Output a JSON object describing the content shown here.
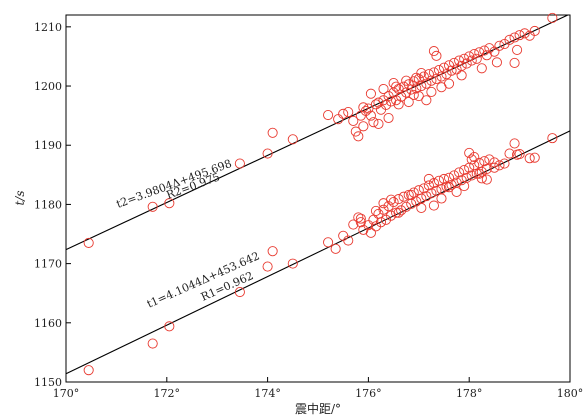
{
  "chart_data": {
    "type": "scatter",
    "xlabel": "震中距/°",
    "ylabel": "t/s",
    "xlim": [
      170,
      180
    ],
    "ylim": [
      1150,
      1212
    ],
    "xticks": [
      170,
      172,
      174,
      176,
      178,
      180
    ],
    "xtick_labels": [
      "170°",
      "172°",
      "174°",
      "176°",
      "178°",
      "180°"
    ],
    "yticks": [
      1150,
      1160,
      1170,
      1180,
      1190,
      1200,
      1210
    ],
    "ytick_labels": [
      "1150",
      "1160",
      "1170",
      "1180",
      "1190",
      "1200",
      "1210"
    ],
    "grid": false,
    "marker_color": "#e8392f",
    "line_color": "#000000",
    "series": [
      {
        "fit": {
          "slope": 3.9804,
          "intercept": 495.698
        },
        "annotation": {
          "equation": "t2=3.9804Δ+495.698",
          "r_label": "R2=0.975"
        },
        "x": [
          170.45,
          171.72,
          172.05,
          173.45,
          174.0,
          174.1,
          174.5,
          175.2,
          175.4,
          175.5,
          175.6,
          175.7,
          175.75,
          175.8,
          175.9,
          175.95,
          176.0,
          176.05,
          176.1,
          176.15,
          176.2,
          176.25,
          176.3,
          176.35,
          176.4,
          176.45,
          176.5,
          176.55,
          176.6,
          176.65,
          176.7,
          176.75,
          176.8,
          176.85,
          176.9,
          176.95,
          177.0,
          177.05,
          177.1,
          177.15,
          177.2,
          177.25,
          177.3,
          177.35,
          177.4,
          177.45,
          177.5,
          177.55,
          177.6,
          177.65,
          177.7,
          177.75,
          177.8,
          177.85,
          177.9,
          177.95,
          178.0,
          178.05,
          178.1,
          178.15,
          178.2,
          178.3,
          178.35,
          178.4,
          178.5,
          178.6,
          178.7,
          178.8,
          178.9,
          179.0,
          179.1,
          179.2,
          179.3,
          179.65,
          177.3,
          177.35,
          175.9,
          175.85,
          176.4,
          176.2,
          177.15,
          177.0,
          176.6,
          176.8,
          177.45,
          177.6,
          178.9,
          176.05,
          176.3,
          176.55,
          176.9,
          177.25,
          177.85,
          178.25,
          178.55,
          178.95,
          176.5,
          176.75,
          176.95,
          177.05
        ],
        "y": [
          1173.5,
          1179.6,
          1180.2,
          1186.9,
          1188.6,
          1192.1,
          1191.0,
          1195.1,
          1194.4,
          1195.3,
          1195.6,
          1194.1,
          1192.3,
          1191.5,
          1193.2,
          1195.8,
          1196.2,
          1195.0,
          1193.9,
          1196.9,
          1197.2,
          1196.0,
          1197.6,
          1196.8,
          1198.3,
          1197.4,
          1198.9,
          1197.6,
          1199.5,
          1198.2,
          1199.9,
          1198.9,
          1200.3,
          1199.4,
          1200.8,
          1199.6,
          1201.2,
          1200.0,
          1201.6,
          1200.4,
          1202.0,
          1200.9,
          1202.3,
          1201.2,
          1202.7,
          1201.6,
          1203.1,
          1202.0,
          1203.5,
          1202.6,
          1203.9,
          1202.8,
          1204.3,
          1203.4,
          1204.6,
          1203.8,
          1205.0,
          1204.3,
          1205.4,
          1204.6,
          1205.7,
          1206.0,
          1205.2,
          1206.4,
          1205.8,
          1206.8,
          1207.1,
          1207.8,
          1208.2,
          1208.6,
          1208.9,
          1208.5,
          1209.3,
          1211.5,
          1205.9,
          1205.1,
          1196.4,
          1195.0,
          1194.6,
          1193.6,
          1197.6,
          1198.3,
          1196.9,
          1197.3,
          1199.8,
          1200.4,
          1203.9,
          1198.7,
          1199.5,
          1199.9,
          1198.5,
          1199.0,
          1201.8,
          1203.0,
          1204.0,
          1206.1,
          1200.5,
          1200.9,
          1201.4,
          1202.2
        ]
      },
      {
        "fit": {
          "slope": 4.1044,
          "intercept": 453.642
        },
        "annotation": {
          "equation": "t1=4.1044Δ+453.642",
          "r_label": "R1=0.962"
        },
        "x": [
          170.45,
          171.72,
          172.05,
          173.45,
          174.0,
          174.1,
          174.5,
          175.2,
          175.35,
          175.5,
          175.6,
          175.7,
          175.8,
          175.85,
          175.9,
          176.0,
          176.05,
          176.1,
          176.15,
          176.2,
          176.25,
          176.3,
          176.35,
          176.4,
          176.45,
          176.5,
          176.55,
          176.6,
          176.65,
          176.7,
          176.75,
          176.8,
          176.85,
          176.9,
          176.95,
          177.0,
          177.05,
          177.1,
          177.15,
          177.2,
          177.25,
          177.3,
          177.35,
          177.4,
          177.45,
          177.5,
          177.55,
          177.6,
          177.65,
          177.7,
          177.75,
          177.8,
          177.85,
          177.9,
          177.95,
          178.0,
          178.05,
          178.1,
          178.15,
          178.2,
          178.25,
          178.3,
          178.35,
          178.4,
          178.5,
          178.6,
          178.7,
          178.8,
          178.9,
          179.0,
          179.2,
          179.3,
          179.65,
          178.0,
          178.05,
          178.2,
          178.35,
          178.95,
          176.3,
          176.6,
          177.2,
          177.3,
          177.6,
          178.1,
          178.5,
          175.85,
          176.45,
          177.05,
          177.75,
          178.25,
          176.85,
          177.45,
          176.15,
          177.9
        ],
        "y": [
          1152.0,
          1156.5,
          1159.4,
          1165.2,
          1169.5,
          1172.1,
          1170.0,
          1173.6,
          1172.5,
          1174.7,
          1173.9,
          1176.6,
          1177.8,
          1177.0,
          1175.7,
          1176.5,
          1175.2,
          1177.4,
          1176.3,
          1178.4,
          1177.0,
          1179.1,
          1177.4,
          1179.7,
          1178.1,
          1180.4,
          1178.6,
          1180.9,
          1179.0,
          1181.3,
          1179.6,
          1181.6,
          1180.1,
          1182.0,
          1180.5,
          1182.4,
          1181.0,
          1182.7,
          1181.4,
          1183.2,
          1181.9,
          1183.6,
          1182.3,
          1184.0,
          1182.6,
          1184.3,
          1183.0,
          1184.5,
          1183.3,
          1184.9,
          1183.7,
          1185.4,
          1184.1,
          1185.8,
          1184.5,
          1186.2,
          1184.9,
          1186.6,
          1185.2,
          1187.0,
          1185.5,
          1187.3,
          1186.0,
          1187.6,
          1186.2,
          1186.6,
          1186.9,
          1188.6,
          1190.3,
          1188.5,
          1187.8,
          1187.9,
          1191.2,
          1188.7,
          1187.6,
          1185.2,
          1184.2,
          1188.4,
          1180.2,
          1178.6,
          1184.3,
          1179.8,
          1182.9,
          1188.0,
          1187.1,
          1177.6,
          1180.8,
          1179.4,
          1182.1,
          1184.4,
          1181.6,
          1181.0,
          1178.9,
          1183.1
        ]
      }
    ]
  }
}
